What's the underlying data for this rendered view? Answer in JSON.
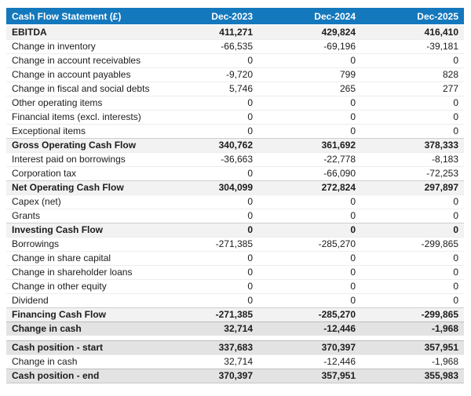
{
  "colors": {
    "header_bg": "#1478bd",
    "header_text": "#ffffff",
    "subtotal_bg": "#f2f2f2",
    "total_bg": "#e3e3e3",
    "text": "#1c1c1c"
  },
  "table": {
    "header": {
      "title": "Cash Flow Statement (£)",
      "columns": [
        "Dec-2023",
        "Dec-2024",
        "Dec-2025"
      ]
    },
    "rows": [
      {
        "label": "EBITDA",
        "values": [
          "411,271",
          "429,824",
          "416,410"
        ],
        "style": "subtotal"
      },
      {
        "label": "Change in inventory",
        "values": [
          "-66,535",
          "-69,196",
          "-39,181"
        ],
        "style": "normal"
      },
      {
        "label": "Change in account receivables",
        "values": [
          "0",
          "0",
          "0"
        ],
        "style": "normal"
      },
      {
        "label": "Change in account payables",
        "values": [
          "-9,720",
          "799",
          "828"
        ],
        "style": "normal"
      },
      {
        "label": "Change in fiscal and social debts",
        "values": [
          "5,746",
          "265",
          "277"
        ],
        "style": "normal"
      },
      {
        "label": "Other operating items",
        "values": [
          "0",
          "0",
          "0"
        ],
        "style": "normal"
      },
      {
        "label": "Financial items (excl. interests)",
        "values": [
          "0",
          "0",
          "0"
        ],
        "style": "normal"
      },
      {
        "label": "Exceptional items",
        "values": [
          "0",
          "0",
          "0"
        ],
        "style": "normal"
      },
      {
        "label": "Gross Operating Cash Flow",
        "values": [
          "340,762",
          "361,692",
          "378,333"
        ],
        "style": "subtotal"
      },
      {
        "label": "Interest paid on borrowings",
        "values": [
          "-36,663",
          "-22,778",
          "-8,183"
        ],
        "style": "normal"
      },
      {
        "label": "Corporation tax",
        "values": [
          "0",
          "-66,090",
          "-72,253"
        ],
        "style": "normal"
      },
      {
        "label": "Net Operating Cash Flow",
        "values": [
          "304,099",
          "272,824",
          "297,897"
        ],
        "style": "subtotal"
      },
      {
        "label": "Capex (net)",
        "values": [
          "0",
          "0",
          "0"
        ],
        "style": "normal"
      },
      {
        "label": "Grants",
        "values": [
          "0",
          "0",
          "0"
        ],
        "style": "normal"
      },
      {
        "label": "Investing Cash Flow",
        "values": [
          "0",
          "0",
          "0"
        ],
        "style": "subtotal"
      },
      {
        "label": "Borrowings",
        "values": [
          "-271,385",
          "-285,270",
          "-299,865"
        ],
        "style": "normal"
      },
      {
        "label": "Change in share capital",
        "values": [
          "0",
          "0",
          "0"
        ],
        "style": "normal"
      },
      {
        "label": "Change in shareholder loans",
        "values": [
          "0",
          "0",
          "0"
        ],
        "style": "normal"
      },
      {
        "label": "Change in other equity",
        "values": [
          "0",
          "0",
          "0"
        ],
        "style": "normal"
      },
      {
        "label": "Dividend",
        "values": [
          "0",
          "0",
          "0"
        ],
        "style": "normal"
      },
      {
        "label": "Financing Cash Flow",
        "values": [
          "-271,385",
          "-285,270",
          "-299,865"
        ],
        "style": "subtotal"
      },
      {
        "label": "Change in cash",
        "values": [
          "32,714",
          "-12,446",
          "-1,968"
        ],
        "style": "total"
      },
      {
        "label": "Cash position - start",
        "values": [
          "337,683",
          "370,397",
          "357,951"
        ],
        "style": "total",
        "gap_before": true
      },
      {
        "label": "Change in cash",
        "values": [
          "32,714",
          "-12,446",
          "-1,968"
        ],
        "style": "normal"
      },
      {
        "label": "Cash position - end",
        "values": [
          "370,397",
          "357,951",
          "355,983"
        ],
        "style": "total"
      }
    ]
  },
  "chart_data": {
    "type": "table",
    "title": "Cash Flow Statement (£)",
    "categories": [
      "Dec-2023",
      "Dec-2024",
      "Dec-2025"
    ],
    "series": [
      {
        "name": "EBITDA",
        "values": [
          411271,
          429824,
          416410
        ]
      },
      {
        "name": "Change in inventory",
        "values": [
          -66535,
          -69196,
          -39181
        ]
      },
      {
        "name": "Change in account receivables",
        "values": [
          0,
          0,
          0
        ]
      },
      {
        "name": "Change in account payables",
        "values": [
          -9720,
          799,
          828
        ]
      },
      {
        "name": "Change in fiscal and social debts",
        "values": [
          5746,
          265,
          277
        ]
      },
      {
        "name": "Other operating items",
        "values": [
          0,
          0,
          0
        ]
      },
      {
        "name": "Financial items (excl. interests)",
        "values": [
          0,
          0,
          0
        ]
      },
      {
        "name": "Exceptional items",
        "values": [
          0,
          0,
          0
        ]
      },
      {
        "name": "Gross Operating Cash Flow",
        "values": [
          340762,
          361692,
          378333
        ]
      },
      {
        "name": "Interest paid on borrowings",
        "values": [
          -36663,
          -22778,
          -8183
        ]
      },
      {
        "name": "Corporation tax",
        "values": [
          0,
          -66090,
          -72253
        ]
      },
      {
        "name": "Net Operating Cash Flow",
        "values": [
          304099,
          272824,
          297897
        ]
      },
      {
        "name": "Capex (net)",
        "values": [
          0,
          0,
          0
        ]
      },
      {
        "name": "Grants",
        "values": [
          0,
          0,
          0
        ]
      },
      {
        "name": "Investing Cash Flow",
        "values": [
          0,
          0,
          0
        ]
      },
      {
        "name": "Borrowings",
        "values": [
          -271385,
          -285270,
          -299865
        ]
      },
      {
        "name": "Change in share capital",
        "values": [
          0,
          0,
          0
        ]
      },
      {
        "name": "Change in shareholder loans",
        "values": [
          0,
          0,
          0
        ]
      },
      {
        "name": "Change in other equity",
        "values": [
          0,
          0,
          0
        ]
      },
      {
        "name": "Dividend",
        "values": [
          0,
          0,
          0
        ]
      },
      {
        "name": "Financing Cash Flow",
        "values": [
          -271385,
          -285270,
          -299865
        ]
      },
      {
        "name": "Change in cash",
        "values": [
          32714,
          -12446,
          -1968
        ]
      },
      {
        "name": "Cash position - start",
        "values": [
          337683,
          370397,
          357951
        ]
      },
      {
        "name": "Change in cash (movement)",
        "values": [
          32714,
          -12446,
          -1968
        ]
      },
      {
        "name": "Cash position - end",
        "values": [
          370397,
          357951,
          355983
        ]
      }
    ]
  }
}
